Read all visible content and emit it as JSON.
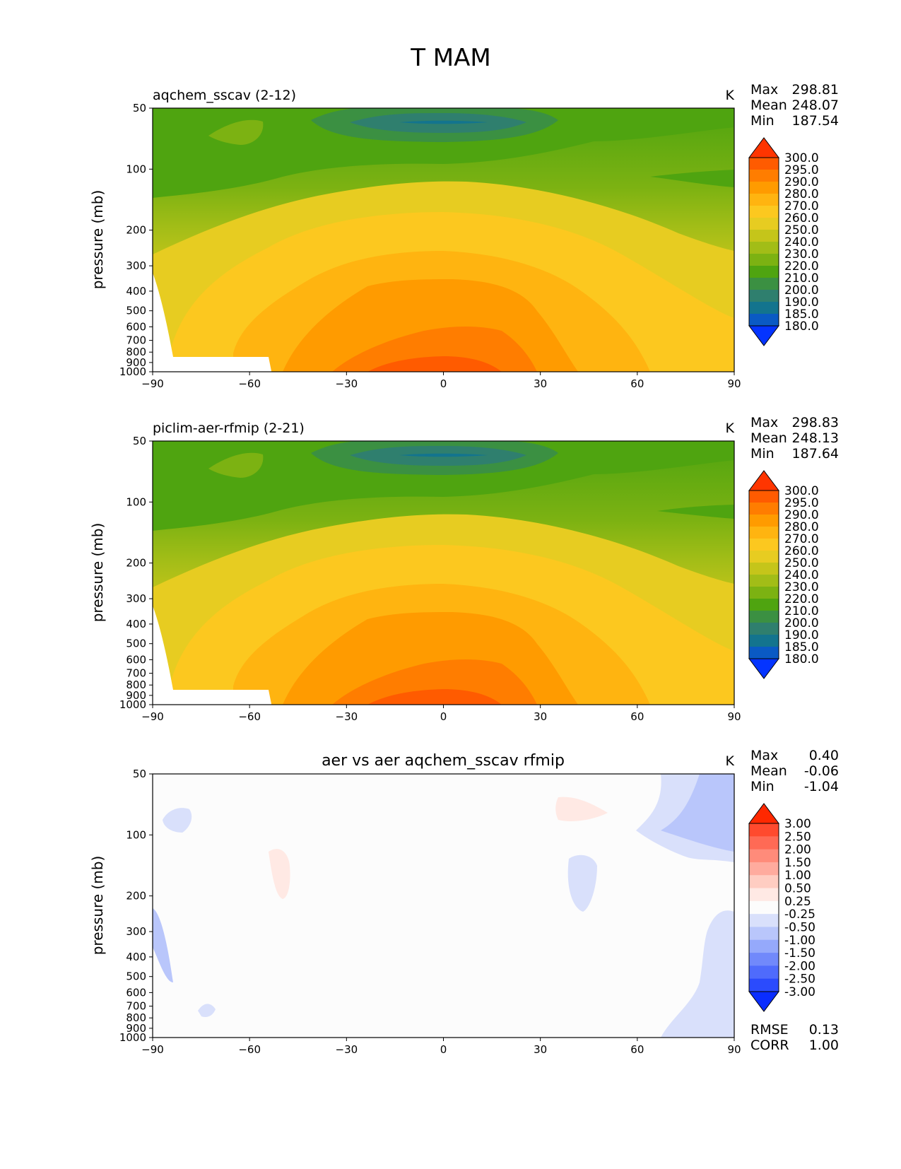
{
  "figure": {
    "title": "T MAM"
  },
  "chart_data": [
    {
      "type": "heatmap",
      "title": "aqchem_sscav (2-12)",
      "units": "K",
      "ylabel": "pressure (mb)",
      "xlabel": "",
      "xlim": [
        -90,
        90
      ],
      "ylim": [
        1000,
        50
      ],
      "x_ticks": [
        "−90",
        "−60",
        "−30",
        "0",
        "30",
        "60",
        "90"
      ],
      "y_ticks": [
        "50",
        "100",
        "200",
        "300",
        "400",
        "500",
        "600",
        "700",
        "800",
        "900",
        "1000"
      ],
      "stats": [
        {
          "label": "Max",
          "value": "298.81"
        },
        {
          "label": "Mean",
          "value": "248.07"
        },
        {
          "label": "Min",
          "value": "187.54"
        }
      ],
      "colorbar_levels": [
        "300.0",
        "295.0",
        "290.0",
        "280.0",
        "270.0",
        "260.0",
        "250.0",
        "240.0",
        "230.0",
        "220.0",
        "210.0",
        "200.0",
        "190.0",
        "185.0",
        "180.0"
      ],
      "colorbar_colors": [
        "#ff3500",
        "#ff5b00",
        "#ff7d00",
        "#ff9b00",
        "#ffb410",
        "#fcc81f",
        "#e7cc21",
        "#c5c51a",
        "#a2bd17",
        "#7cb212",
        "#4fa410",
        "#3b9042",
        "#2f7f6e",
        "#13748e",
        "#0a5ac4",
        "#0434ff"
      ]
    },
    {
      "type": "heatmap",
      "title": "piclim-aer-rfmip (2-21)",
      "units": "K",
      "ylabel": "pressure (mb)",
      "xlabel": "",
      "xlim": [
        -90,
        90
      ],
      "ylim": [
        1000,
        50
      ],
      "x_ticks": [
        "−90",
        "−60",
        "−30",
        "0",
        "30",
        "60",
        "90"
      ],
      "y_ticks": [
        "50",
        "100",
        "200",
        "300",
        "400",
        "500",
        "600",
        "700",
        "800",
        "900",
        "1000"
      ],
      "stats": [
        {
          "label": "Max",
          "value": "298.83"
        },
        {
          "label": "Mean",
          "value": "248.13"
        },
        {
          "label": "Min",
          "value": "187.64"
        }
      ],
      "colorbar_levels": [
        "300.0",
        "295.0",
        "290.0",
        "280.0",
        "270.0",
        "260.0",
        "250.0",
        "240.0",
        "230.0",
        "220.0",
        "210.0",
        "200.0",
        "190.0",
        "185.0",
        "180.0"
      ],
      "colorbar_colors": [
        "#ff3500",
        "#ff5b00",
        "#ff7d00",
        "#ff9b00",
        "#ffb410",
        "#fcc81f",
        "#e7cc21",
        "#c5c51a",
        "#a2bd17",
        "#7cb212",
        "#4fa410",
        "#3b9042",
        "#2f7f6e",
        "#13748e",
        "#0a5ac4",
        "#0434ff"
      ]
    },
    {
      "type": "heatmap",
      "title": "aer vs aer aqchem_sscav rfmip",
      "units": "K",
      "ylabel": "pressure (mb)",
      "xlabel": "",
      "xlim": [
        -90,
        90
      ],
      "ylim": [
        1000,
        50
      ],
      "x_ticks": [
        "−90",
        "−60",
        "−30",
        "0",
        "30",
        "60",
        "90"
      ],
      "y_ticks": [
        "50",
        "100",
        "200",
        "300",
        "400",
        "500",
        "600",
        "700",
        "800",
        "900",
        "1000"
      ],
      "stats": [
        {
          "label": "Max",
          "value": "0.40"
        },
        {
          "label": "Mean",
          "value": "-0.06"
        },
        {
          "label": "Min",
          "value": "-1.04"
        }
      ],
      "extra_stats": [
        {
          "label": "RMSE",
          "value": "0.13"
        },
        {
          "label": "CORR",
          "value": "1.00"
        }
      ],
      "colorbar_levels": [
        "3.00",
        "2.50",
        "2.00",
        "1.50",
        "1.00",
        "0.50",
        "0.25",
        "-0.25",
        "-0.50",
        "-1.00",
        "-1.50",
        "-2.00",
        "-2.50",
        "-3.00"
      ],
      "colorbar_colors": [
        "#ff2800",
        "#ff4a2e",
        "#ff6a55",
        "#ff8b7a",
        "#ffab9e",
        "#ffcdc2",
        "#ffe9e4",
        "#fcfcfc",
        "#d9e0fb",
        "#b9c6fb",
        "#95a9fb",
        "#7189fb",
        "#4f6bfc",
        "#2b4bfd",
        "#0a2dff"
      ]
    }
  ]
}
